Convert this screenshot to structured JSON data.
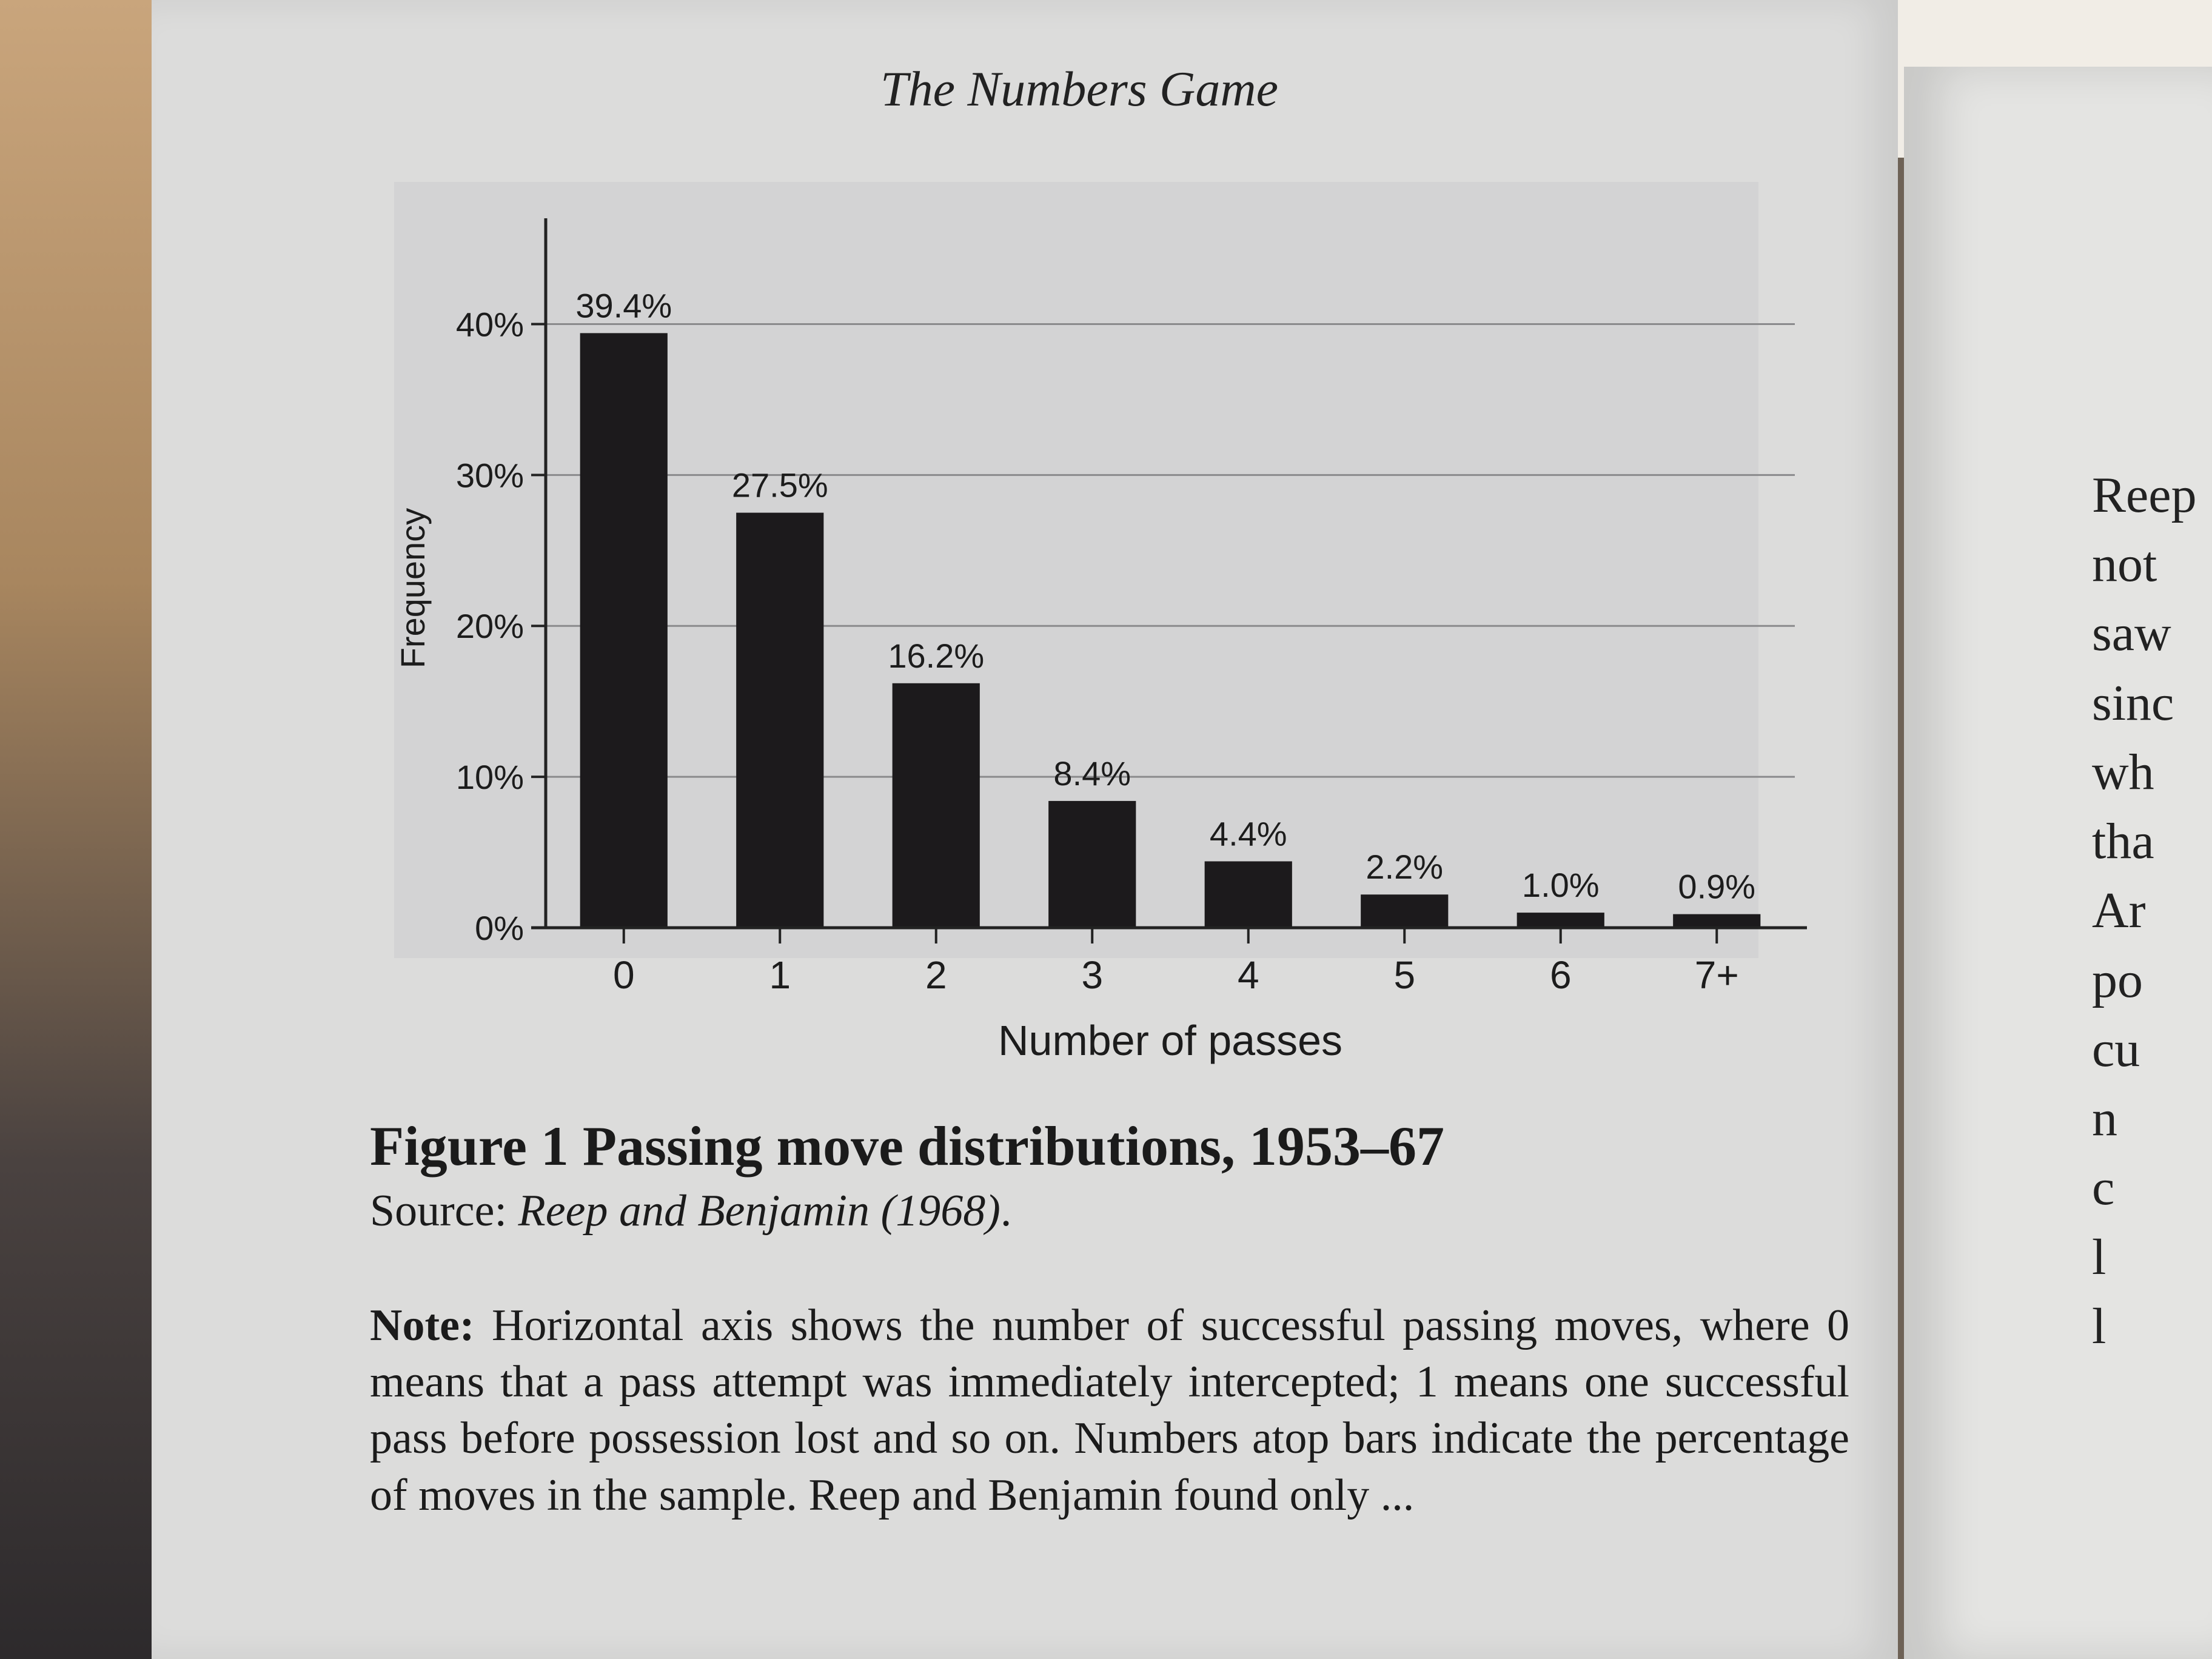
{
  "running_head": "The Numbers Game",
  "chart_data": {
    "type": "bar",
    "title": "",
    "xlabel": "Number of passes",
    "ylabel": "Frequency",
    "categories": [
      "0",
      "1",
      "2",
      "3",
      "4",
      "5",
      "6",
      "7+"
    ],
    "values": [
      39.4,
      27.5,
      16.2,
      8.4,
      4.4,
      2.2,
      1.0,
      0.9
    ],
    "value_labels": [
      "39.4%",
      "27.5%",
      "16.2%",
      "8.4%",
      "4.4%",
      "2.2%",
      "1.0%",
      "0.9%"
    ],
    "yticks": [
      0,
      10,
      20,
      30,
      40
    ],
    "ytick_labels": [
      "0%",
      "10%",
      "20%",
      "30%",
      "40%"
    ],
    "ylim": [
      0,
      45
    ],
    "grid": true,
    "legend": "none",
    "bar_color": "#1c1a1c",
    "panel_color": "#d3d3d4"
  },
  "caption": {
    "title": "Figure 1 Passing move distributions, 1953–67",
    "source_prefix": "Source: ",
    "source_italic": "Reep and Benjamin (1968)",
    "source_suffix": "."
  },
  "note": {
    "label": "Note:",
    "text": " Horizontal axis shows the number of successful passing moves, where 0 means that a pass attempt was immediately intercepted; 1 means one successful pass before possession lost and so on. Numbers atop bars indicate the percentage of moves in the sample. Reep and Benjamin found only ..."
  },
  "facing_page_fragments": [
    "Reep",
    "not",
    "saw",
    "sinc",
    "wh",
    "tha",
    "Ar",
    "po",
    "cu",
    "n",
    "c",
    "l",
    "l"
  ]
}
